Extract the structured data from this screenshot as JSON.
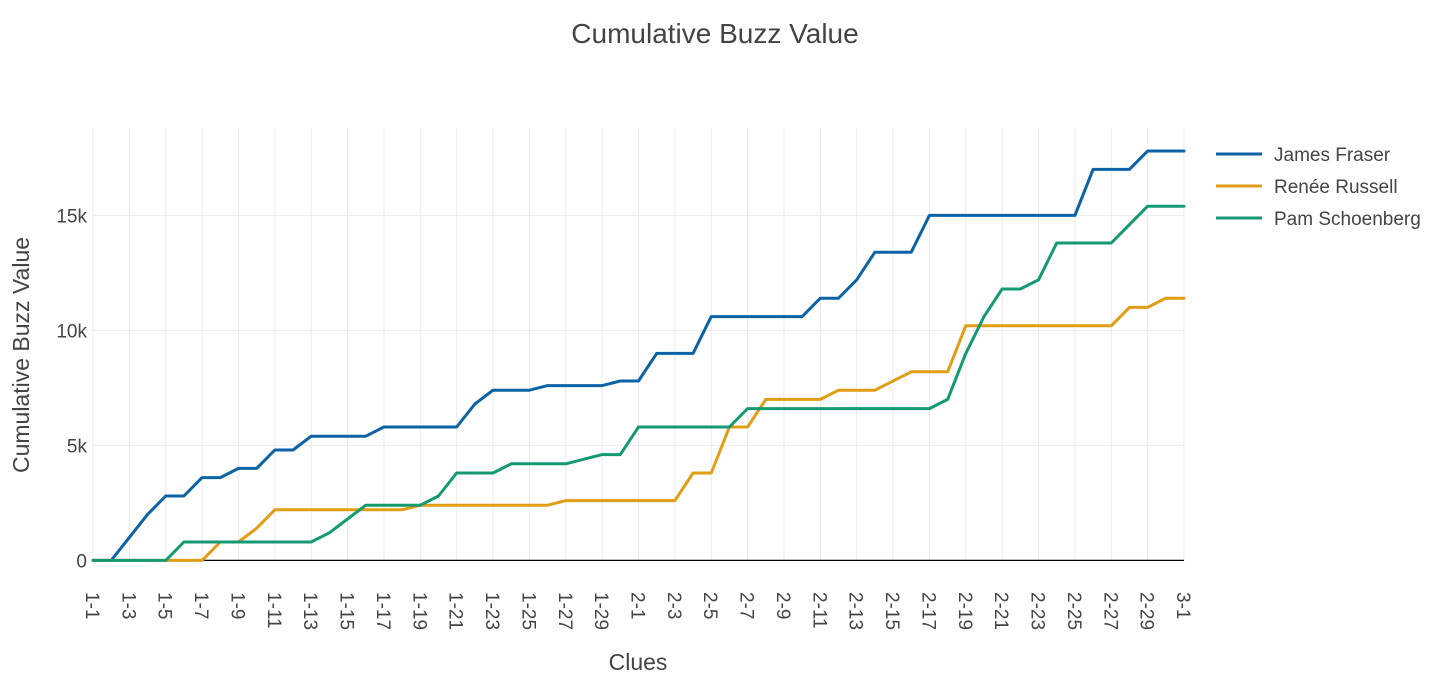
{
  "chart_data": {
    "type": "line",
    "title": "Cumulative Buzz Value",
    "xlabel": "Clues",
    "ylabel": "Cumulative Buzz Value",
    "ylim": [
      -1200,
      18800
    ],
    "grid": true,
    "legend_position": "top-right",
    "x_categories": [
      "1-1",
      "1-2",
      "1-3",
      "1-4",
      "1-5",
      "1-6",
      "1-7",
      "1-8",
      "1-9",
      "1-10",
      "1-11",
      "1-12",
      "1-13",
      "1-14",
      "1-15",
      "1-16",
      "1-17",
      "1-18",
      "1-19",
      "1-20",
      "1-21",
      "1-22",
      "1-23",
      "1-24",
      "1-25",
      "1-26",
      "1-27",
      "1-28",
      "1-29",
      "1-30",
      "2-1",
      "2-2",
      "2-3",
      "2-4",
      "2-5",
      "2-6",
      "2-7",
      "2-8",
      "2-9",
      "2-10",
      "2-11",
      "2-12",
      "2-13",
      "2-14",
      "2-15",
      "2-16",
      "2-17",
      "2-18",
      "2-19",
      "2-20",
      "2-21",
      "2-22",
      "2-23",
      "2-24",
      "2-25",
      "2-26",
      "2-27",
      "2-28",
      "2-29",
      "2-30",
      "3-1"
    ],
    "x_tick_labels": [
      "1-1",
      "1-3",
      "1-5",
      "1-7",
      "1-9",
      "1-11",
      "1-13",
      "1-15",
      "1-17",
      "1-19",
      "1-21",
      "1-23",
      "1-25",
      "1-27",
      "1-29",
      "2-1",
      "2-3",
      "2-5",
      "2-7",
      "2-9",
      "2-11",
      "2-13",
      "2-15",
      "2-17",
      "2-19",
      "2-21",
      "2-23",
      "2-25",
      "2-27",
      "2-29",
      "3-1"
    ],
    "y_ticks": [
      {
        "value": 0,
        "label": "0"
      },
      {
        "value": 5000,
        "label": "5k"
      },
      {
        "value": 10000,
        "label": "10k"
      },
      {
        "value": 15000,
        "label": "15k"
      }
    ],
    "series": [
      {
        "name": "James Fraser",
        "color": "#0b63a5",
        "values": [
          0,
          0,
          1000,
          2000,
          2800,
          2800,
          3600,
          3600,
          4000,
          4000,
          4800,
          4800,
          5400,
          5400,
          5400,
          5400,
          5800,
          5800,
          5800,
          5800,
          5800,
          6800,
          7400,
          7400,
          7400,
          7600,
          7600,
          7600,
          7600,
          7800,
          7800,
          9000,
          9000,
          9000,
          10600,
          10600,
          10600,
          10600,
          10600,
          10600,
          11400,
          11400,
          12200,
          13400,
          13400,
          13400,
          15000,
          15000,
          15000,
          15000,
          15000,
          15000,
          15000,
          15000,
          15000,
          17000,
          17000,
          17000,
          17800,
          17800,
          17800
        ]
      },
      {
        "name": "Renée Russell",
        "color": "#e19d16",
        "values": [
          0,
          0,
          0,
          0,
          0,
          0,
          0,
          800,
          800,
          1400,
          2200,
          2200,
          2200,
          2200,
          2200,
          2200,
          2200,
          2200,
          2400,
          2400,
          2400,
          2400,
          2400,
          2400,
          2400,
          2400,
          2600,
          2600,
          2600,
          2600,
          2600,
          2600,
          2600,
          3800,
          3800,
          5800,
          5800,
          7000,
          7000,
          7000,
          7000,
          7400,
          7400,
          7400,
          7800,
          8200,
          8200,
          8200,
          10200,
          10200,
          10200,
          10200,
          10200,
          10200,
          10200,
          10200,
          10200,
          11000,
          11000,
          11400,
          11400
        ]
      },
      {
        "name": "Pam Schoenberg",
        "color": "#149a72",
        "values": [
          0,
          0,
          0,
          0,
          0,
          800,
          800,
          800,
          800,
          800,
          800,
          800,
          800,
          1200,
          1800,
          2400,
          2400,
          2400,
          2400,
          2800,
          3800,
          3800,
          3800,
          4200,
          4200,
          4200,
          4200,
          4400,
          4600,
          4600,
          5800,
          5800,
          5800,
          5800,
          5800,
          5800,
          6600,
          6600,
          6600,
          6600,
          6600,
          6600,
          6600,
          6600,
          6600,
          6600,
          6600,
          7000,
          9000,
          10600,
          11800,
          11800,
          12200,
          13800,
          13800,
          13800,
          13800,
          14600,
          15400,
          15400,
          15400
        ]
      }
    ]
  }
}
